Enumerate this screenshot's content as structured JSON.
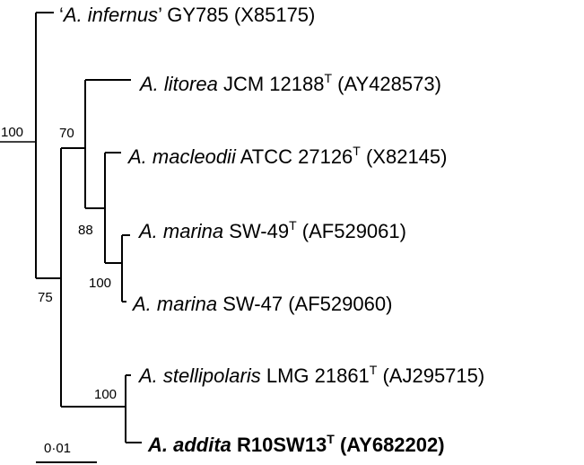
{
  "tree": {
    "taxa": [
      {
        "id": "infernus",
        "q_open": "‘",
        "genus_species": "A. infernus",
        "q_close": "’",
        "strain": " GY785",
        "type_strain": "",
        "accession": " (X85175)",
        "bold": false
      },
      {
        "id": "litorea",
        "q_open": "",
        "genus_species": "A. litorea",
        "q_close": "",
        "strain": " JCM 12188",
        "type_strain": "T",
        "accession": " (AY428573)",
        "bold": false
      },
      {
        "id": "macleodii",
        "q_open": "",
        "genus_species": "A. macleodii",
        "q_close": "",
        "strain": " ATCC 27126",
        "type_strain": "T",
        "accession": " (X82145)",
        "bold": false
      },
      {
        "id": "marina49",
        "q_open": "",
        "genus_species": "A. marina",
        "q_close": "",
        "strain": " SW-49",
        "type_strain": "T",
        "accession": " (AF529061)",
        "bold": false
      },
      {
        "id": "marina47",
        "q_open": "",
        "genus_species": "A. marina",
        "q_close": "",
        "strain": " SW-47",
        "type_strain": "",
        "accession": " (AF529060)",
        "bold": false
      },
      {
        "id": "stellipolaris",
        "q_open": "",
        "genus_species": "A. stellipolaris",
        "q_close": "",
        "strain": " LMG 21861",
        "type_strain": "T",
        "accession": " (AJ295715)",
        "bold": false
      },
      {
        "id": "addita",
        "q_open": "",
        "genus_species": "A. addita",
        "q_close": "",
        "strain": " R10SW13",
        "type_strain": "T",
        "accession": " (AY682202)",
        "bold": true
      }
    ],
    "bootstrap": {
      "root": "100",
      "litorea_clade": "70",
      "macleodii_clade": "88",
      "marina_clade": "100",
      "lower_clade": "75",
      "stellipolaris_clade": "100"
    },
    "scale_bar": "0·01"
  }
}
